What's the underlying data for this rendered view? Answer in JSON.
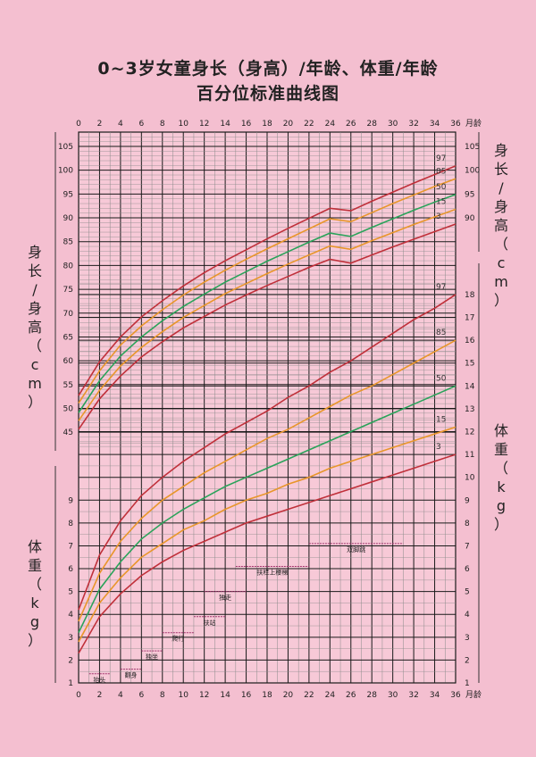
{
  "title_line1": "0~3岁女童身长（身高）/年龄、体重/年龄",
  "title_line2": "百分位标准曲线图",
  "axis": {
    "month_unit": "月龄",
    "height_label": "身长/身高（cm）",
    "weight_label": "体重（kg）"
  },
  "colors": {
    "background": "#f4bfd0",
    "grid_major": "#1a1a1a",
    "grid_minor": "#8a8a8a",
    "p97": "#c0303a",
    "p85": "#e8962a",
    "p50": "#2aa35a",
    "p15": "#e8962a",
    "p3": "#c0303a",
    "milestone": "#a0306a"
  },
  "chart_data": {
    "type": "line",
    "title": "0~3岁女童身长（身高）/年龄、体重/年龄 百分位标准曲线图",
    "xlabel": "月龄",
    "x_ticks": [
      0,
      2,
      4,
      6,
      8,
      10,
      12,
      14,
      16,
      18,
      20,
      22,
      24,
      26,
      28,
      30,
      32,
      34,
      36
    ],
    "xlim": [
      0,
      36
    ],
    "grid": true,
    "height_panel": {
      "ylabel": "身长/身高（cm）",
      "ylim": [
        41,
        108
      ],
      "y_ticks": [
        45,
        50,
        55,
        60,
        65,
        70,
        75,
        80,
        85,
        90,
        95,
        100,
        105
      ],
      "x": [
        0,
        2,
        4,
        6,
        8,
        10,
        12,
        14,
        16,
        18,
        20,
        22,
        24,
        26,
        28,
        30,
        32,
        34,
        36
      ],
      "series": [
        {
          "name": "97",
          "values": [
            52.7,
            59.8,
            65.0,
            69.2,
            72.6,
            75.7,
            78.5,
            81.0,
            83.3,
            85.6,
            87.8,
            89.9,
            92.0,
            91.5,
            93.5,
            95.4,
            97.3,
            99.1,
            100.9
          ]
        },
        {
          "name": "85",
          "values": [
            51.1,
            57.9,
            63.3,
            67.3,
            70.7,
            73.8,
            76.5,
            79.0,
            81.3,
            83.5,
            85.6,
            87.7,
            89.8,
            89.2,
            91.1,
            93.0,
            94.8,
            96.6,
            98.2
          ]
        },
        {
          "name": "50",
          "values": [
            49.1,
            55.8,
            61.0,
            65.0,
            68.4,
            71.4,
            74.0,
            76.5,
            78.7,
            80.9,
            82.9,
            84.9,
            86.8,
            86.1,
            88.0,
            89.8,
            91.6,
            93.3,
            94.9
          ]
        },
        {
          "name": "15",
          "values": [
            47.4,
            53.8,
            58.9,
            62.8,
            66.1,
            69.1,
            71.6,
            74.1,
            76.2,
            78.3,
            80.3,
            82.2,
            84.1,
            83.4,
            85.2,
            86.9,
            88.6,
            90.2,
            91.8
          ]
        },
        {
          "name": "3",
          "values": [
            45.6,
            52.0,
            56.8,
            60.8,
            64.0,
            66.9,
            69.3,
            71.7,
            73.8,
            75.8,
            77.7,
            79.6,
            81.3,
            80.5,
            82.2,
            83.9,
            85.5,
            87.1,
            88.7
          ]
        }
      ]
    },
    "weight_panel": {
      "ylabel": "体重（kg）",
      "ylim": [
        1,
        18.8
      ],
      "y_ticks": [
        1,
        2,
        3,
        4,
        5,
        6,
        7,
        8,
        9,
        10,
        11,
        12,
        13,
        14,
        15,
        16,
        17,
        18
      ],
      "x": [
        0,
        2,
        4,
        6,
        8,
        10,
        12,
        14,
        16,
        18,
        20,
        22,
        24,
        26,
        28,
        30,
        32,
        34,
        36
      ],
      "series": [
        {
          "name": "97",
          "values": [
            4.2,
            6.6,
            8.1,
            9.2,
            10.0,
            10.7,
            11.3,
            11.9,
            12.4,
            12.9,
            13.5,
            14.0,
            14.6,
            15.1,
            15.7,
            16.3,
            16.9,
            17.4,
            18.0
          ]
        },
        {
          "name": "85",
          "values": [
            3.7,
            5.8,
            7.2,
            8.2,
            9.0,
            9.6,
            10.2,
            10.7,
            11.2,
            11.7,
            12.1,
            12.6,
            13.1,
            13.6,
            14.0,
            14.5,
            15.0,
            15.5,
            16.0
          ]
        },
        {
          "name": "50",
          "values": [
            3.2,
            5.1,
            6.3,
            7.3,
            8.0,
            8.6,
            9.1,
            9.6,
            10.0,
            10.4,
            10.8,
            11.2,
            11.6,
            12.0,
            12.4,
            12.8,
            13.2,
            13.6,
            14.0
          ]
        },
        {
          "name": "15",
          "values": [
            2.8,
            4.5,
            5.6,
            6.5,
            7.1,
            7.7,
            8.1,
            8.6,
            9.0,
            9.3,
            9.7,
            10.0,
            10.4,
            10.7,
            11.0,
            11.3,
            11.6,
            11.9,
            12.2
          ]
        },
        {
          "name": "3",
          "values": [
            2.3,
            3.9,
            4.9,
            5.7,
            6.3,
            6.8,
            7.2,
            7.6,
            8.0,
            8.3,
            8.6,
            8.9,
            9.2,
            9.5,
            9.8,
            10.1,
            10.4,
            10.7,
            11.0
          ]
        }
      ]
    },
    "milestones": [
      {
        "label": "抬头",
        "start": 1,
        "end": 3,
        "weight_level": 1.4
      },
      {
        "label": "翻身",
        "start": 4,
        "end": 6,
        "weight_level": 1.6
      },
      {
        "label": "独坐",
        "start": 6,
        "end": 8,
        "weight_level": 2.4
      },
      {
        "label": "爬行",
        "start": 8,
        "end": 11,
        "weight_level": 3.2
      },
      {
        "label": "扶站",
        "start": 11,
        "end": 14,
        "weight_level": 3.9
      },
      {
        "label": "独走",
        "start": 12,
        "end": 16,
        "weight_level": 5.0
      },
      {
        "label": "扶栏上楼梯",
        "start": 15,
        "end": 22,
        "weight_level": 6.1
      },
      {
        "label": "双脚跳",
        "start": 22,
        "end": 31,
        "weight_level": 7.1
      }
    ]
  }
}
